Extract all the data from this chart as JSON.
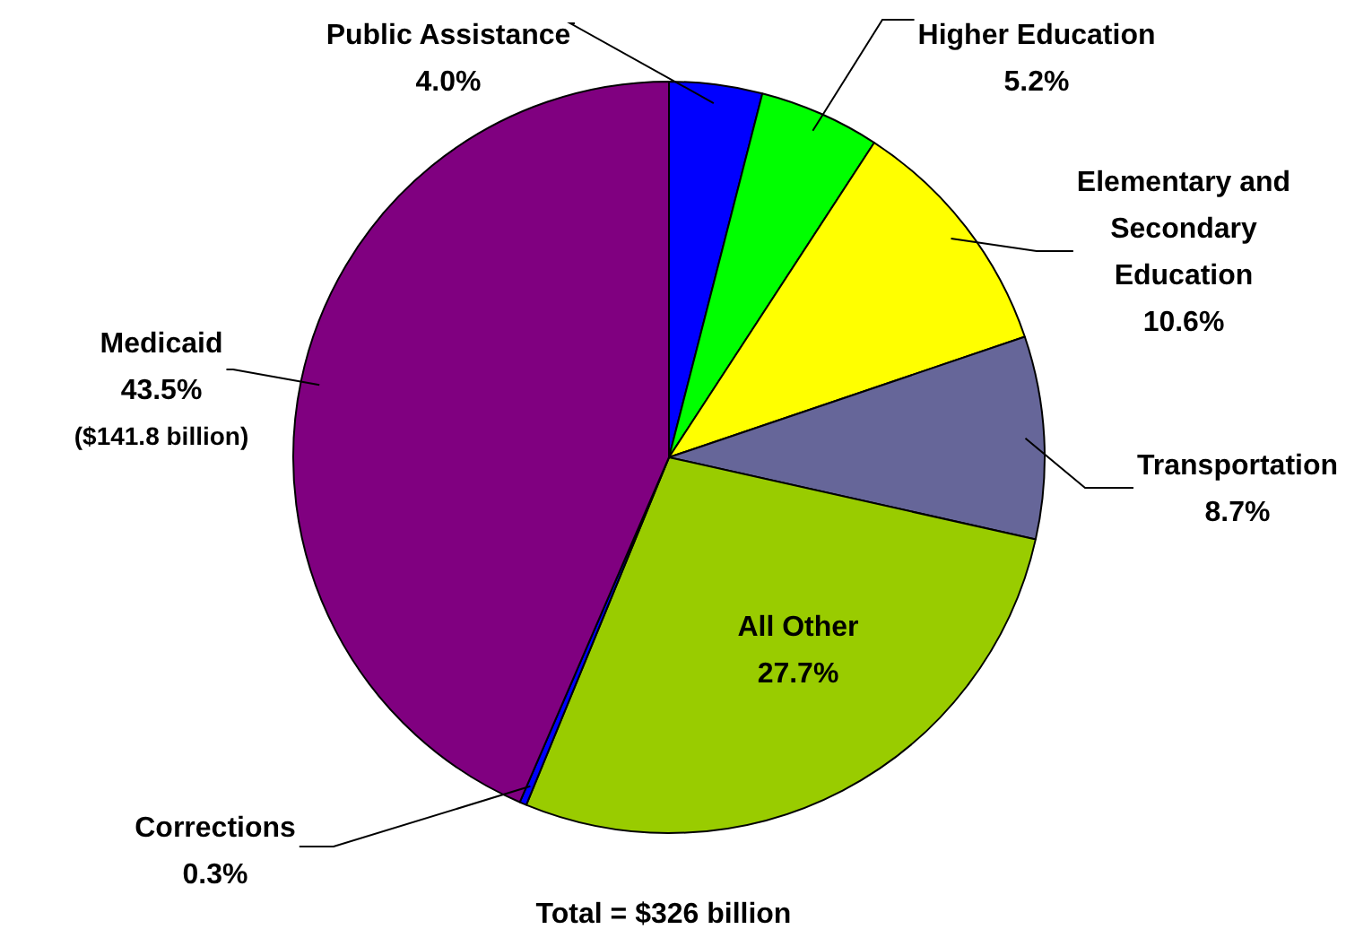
{
  "chart_data": {
    "type": "pie",
    "categories": [
      "Public Assistance",
      "Higher Education",
      "Elementary and Secondary Education",
      "Transportation",
      "All Other",
      "Corrections",
      "Medicaid"
    ],
    "values": [
      4.0,
      5.2,
      10.6,
      8.7,
      27.7,
      0.3,
      43.5
    ],
    "colors": [
      "#0000ff",
      "#00ff00",
      "#ffff00",
      "#666699",
      "#99cc00",
      "#0000ff",
      "#800080"
    ],
    "value_labels": [
      "4.0%",
      "5.2%",
      "10.6%",
      "8.7%",
      "27.7%",
      "0.3%",
      "43.5%"
    ],
    "annotations": [
      {
        "text": "($141.8 billion)",
        "x": "Medicaid"
      },
      "Total = $326 billion"
    ]
  }
}
